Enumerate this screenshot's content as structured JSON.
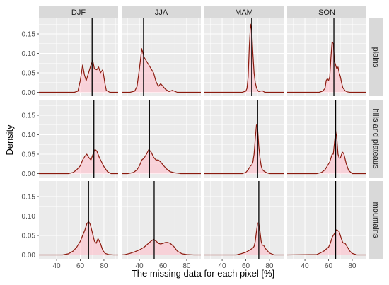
{
  "chart_data": {
    "type": "area",
    "xlabel": "The missing data for each pixel [%]",
    "ylabel": "Density",
    "xlim": [
      25,
      92
    ],
    "ylim": [
      -0.01,
      0.19
    ],
    "xticks": [
      40,
      60,
      80
    ],
    "yticks": [
      0.0,
      0.05,
      0.1,
      0.15
    ],
    "ytick_labels": [
      "0.00",
      "0.05",
      "0.10",
      "0.15"
    ],
    "grid": true,
    "columns": [
      "DJF",
      "JJA",
      "MAM",
      "SON"
    ],
    "rows": [
      "plains",
      "hills and plateaus",
      "mountains"
    ],
    "panels": [
      {
        "season": "DJF",
        "terrain": "plains",
        "median": 70,
        "x": [
          25,
          55,
          58,
          60,
          62,
          63.5,
          65,
          67,
          69,
          70.5,
          72,
          74,
          75.5,
          77,
          79,
          81,
          82,
          85,
          92
        ],
        "y": [
          0,
          0,
          0.003,
          0.03,
          0.07,
          0.045,
          0.03,
          0.05,
          0.07,
          0.082,
          0.06,
          0.058,
          0.065,
          0.05,
          0.058,
          0.02,
          0.005,
          0,
          0
        ]
      },
      {
        "season": "JJA",
        "terrain": "plains",
        "median": 43.5,
        "x": [
          25,
          32,
          36,
          38,
          40,
          42,
          44,
          46,
          48,
          50,
          52,
          54,
          56,
          58,
          60,
          62,
          65,
          68,
          72,
          92
        ],
        "y": [
          0,
          0,
          0.003,
          0.015,
          0.06,
          0.112,
          0.09,
          0.08,
          0.07,
          0.06,
          0.05,
          0.028,
          0.015,
          0.022,
          0.015,
          0.008,
          0.002,
          0.005,
          0,
          0
        ]
      },
      {
        "season": "MAM",
        "terrain": "plains",
        "median": 65,
        "x": [
          25,
          57,
          60,
          61,
          62,
          63,
          64,
          65,
          66,
          67,
          68,
          69,
          70,
          71,
          72,
          74,
          76,
          92
        ],
        "y": [
          0,
          0,
          0.003,
          0.01,
          0.04,
          0.12,
          0.175,
          0.16,
          0.1,
          0.05,
          0.025,
          0.012,
          0.005,
          0.002,
          0.003,
          0.004,
          0,
          0
        ]
      },
      {
        "season": "SON",
        "terrain": "plains",
        "median": 64.5,
        "x": [
          25,
          52,
          55,
          57,
          58,
          59,
          60,
          61,
          62,
          63,
          64,
          65,
          66,
          67,
          68,
          69,
          70,
          71,
          72,
          74,
          76,
          78,
          92
        ],
        "y": [
          0,
          0,
          0.003,
          0.01,
          0.03,
          0.035,
          0.03,
          0.04,
          0.09,
          0.13,
          0.125,
          0.08,
          0.07,
          0.06,
          0.065,
          0.05,
          0.04,
          0.025,
          0.012,
          0.004,
          0.001,
          0,
          0
        ]
      },
      {
        "season": "DJF",
        "terrain": "hills and plateaus",
        "median": 71.5,
        "x": [
          25,
          50,
          54,
          57,
          60,
          62,
          64,
          65.5,
          67,
          69,
          71,
          72.5,
          74,
          76,
          78,
          80,
          83,
          86,
          92
        ],
        "y": [
          0,
          0,
          0.003,
          0.01,
          0.02,
          0.035,
          0.045,
          0.05,
          0.042,
          0.035,
          0.052,
          0.062,
          0.058,
          0.042,
          0.03,
          0.018,
          0.005,
          0,
          0
        ]
      },
      {
        "season": "JJA",
        "terrain": "hills and plateaus",
        "median": 48.5,
        "x": [
          25,
          30,
          35,
          38,
          40,
          42,
          44,
          46,
          48,
          50,
          52,
          54,
          56,
          58,
          60,
          63,
          66,
          70,
          75,
          92
        ],
        "y": [
          0,
          0,
          0.003,
          0.01,
          0.02,
          0.035,
          0.04,
          0.05,
          0.062,
          0.055,
          0.042,
          0.035,
          0.035,
          0.03,
          0.022,
          0.012,
          0.005,
          0.002,
          0,
          0
        ]
      },
      {
        "season": "MAM",
        "terrain": "hills and plateaus",
        "median": 70,
        "x": [
          25,
          57,
          60,
          62,
          64,
          65,
          66,
          67,
          68,
          69,
          70,
          71,
          72,
          73,
          74,
          76,
          78,
          80,
          92
        ],
        "y": [
          0,
          0,
          0.003,
          0.01,
          0.02,
          0.022,
          0.03,
          0.05,
          0.09,
          0.125,
          0.115,
          0.07,
          0.04,
          0.02,
          0.01,
          0.005,
          0.002,
          0,
          0
        ]
      },
      {
        "season": "SON",
        "terrain": "hills and plateaus",
        "median": 66,
        "x": [
          25,
          50,
          54,
          57,
          59,
          61,
          62,
          63,
          64,
          65,
          66,
          67,
          68,
          69,
          70,
          71,
          72,
          73,
          75,
          77,
          80,
          92
        ],
        "y": [
          0,
          0,
          0.003,
          0.01,
          0.02,
          0.03,
          0.04,
          0.05,
          0.05,
          0.08,
          0.11,
          0.09,
          0.05,
          0.04,
          0.04,
          0.05,
          0.055,
          0.05,
          0.025,
          0.008,
          0,
          0
        ]
      },
      {
        "season": "DJF",
        "terrain": "mountains",
        "median": 67,
        "x": [
          25,
          45,
          50,
          54,
          57,
          60,
          62,
          64,
          65.5,
          67,
          68.5,
          70,
          72,
          73.5,
          75,
          77,
          79,
          81,
          84,
          88,
          92
        ],
        "y": [
          0,
          0,
          0.003,
          0.01,
          0.02,
          0.035,
          0.05,
          0.065,
          0.08,
          0.086,
          0.078,
          0.06,
          0.035,
          0.03,
          0.042,
          0.03,
          0.012,
          0.004,
          0.001,
          0,
          0
        ]
      },
      {
        "season": "JJA",
        "terrain": "mountains",
        "median": 52.5,
        "x": [
          25,
          28,
          32,
          36,
          40,
          44,
          47,
          50,
          52,
          54,
          56,
          58,
          60,
          62,
          64,
          66,
          69,
          72,
          76,
          80,
          86,
          92
        ],
        "y": [
          0,
          0.001,
          0.004,
          0.008,
          0.013,
          0.02,
          0.028,
          0.036,
          0.04,
          0.036,
          0.03,
          0.028,
          0.03,
          0.032,
          0.032,
          0.03,
          0.022,
          0.01,
          0.003,
          0.001,
          0,
          0
        ]
      },
      {
        "season": "MAM",
        "terrain": "mountains",
        "median": 71,
        "x": [
          25,
          52,
          56,
          60,
          63,
          65,
          66,
          67,
          68,
          69,
          70,
          71,
          72,
          73,
          74,
          75,
          77,
          80,
          84,
          92
        ],
        "y": [
          0,
          0,
          0.003,
          0.007,
          0.012,
          0.016,
          0.018,
          0.022,
          0.035,
          0.06,
          0.082,
          0.082,
          0.06,
          0.035,
          0.025,
          0.025,
          0.015,
          0.005,
          0,
          0
        ]
      },
      {
        "season": "SON",
        "terrain": "mountains",
        "median": 66,
        "x": [
          25,
          50,
          53,
          56,
          58,
          60,
          61.5,
          63,
          64,
          65,
          66,
          67,
          68,
          69,
          70,
          71,
          72,
          73,
          74,
          76,
          78,
          80,
          84,
          92
        ],
        "y": [
          0,
          0.001,
          0.005,
          0.01,
          0.015,
          0.02,
          0.03,
          0.045,
          0.05,
          0.055,
          0.062,
          0.065,
          0.062,
          0.06,
          0.05,
          0.04,
          0.032,
          0.03,
          0.03,
          0.02,
          0.01,
          0.004,
          0,
          0
        ]
      }
    ]
  },
  "colors": {
    "panel_background": "#ebebeb",
    "gridline": "#ffffff",
    "strip_background": "#d9d9d9",
    "density_line": "#8b1a0e",
    "density_fill": "#ffc0cb",
    "median_line": "#000000",
    "tick": "#333333"
  }
}
